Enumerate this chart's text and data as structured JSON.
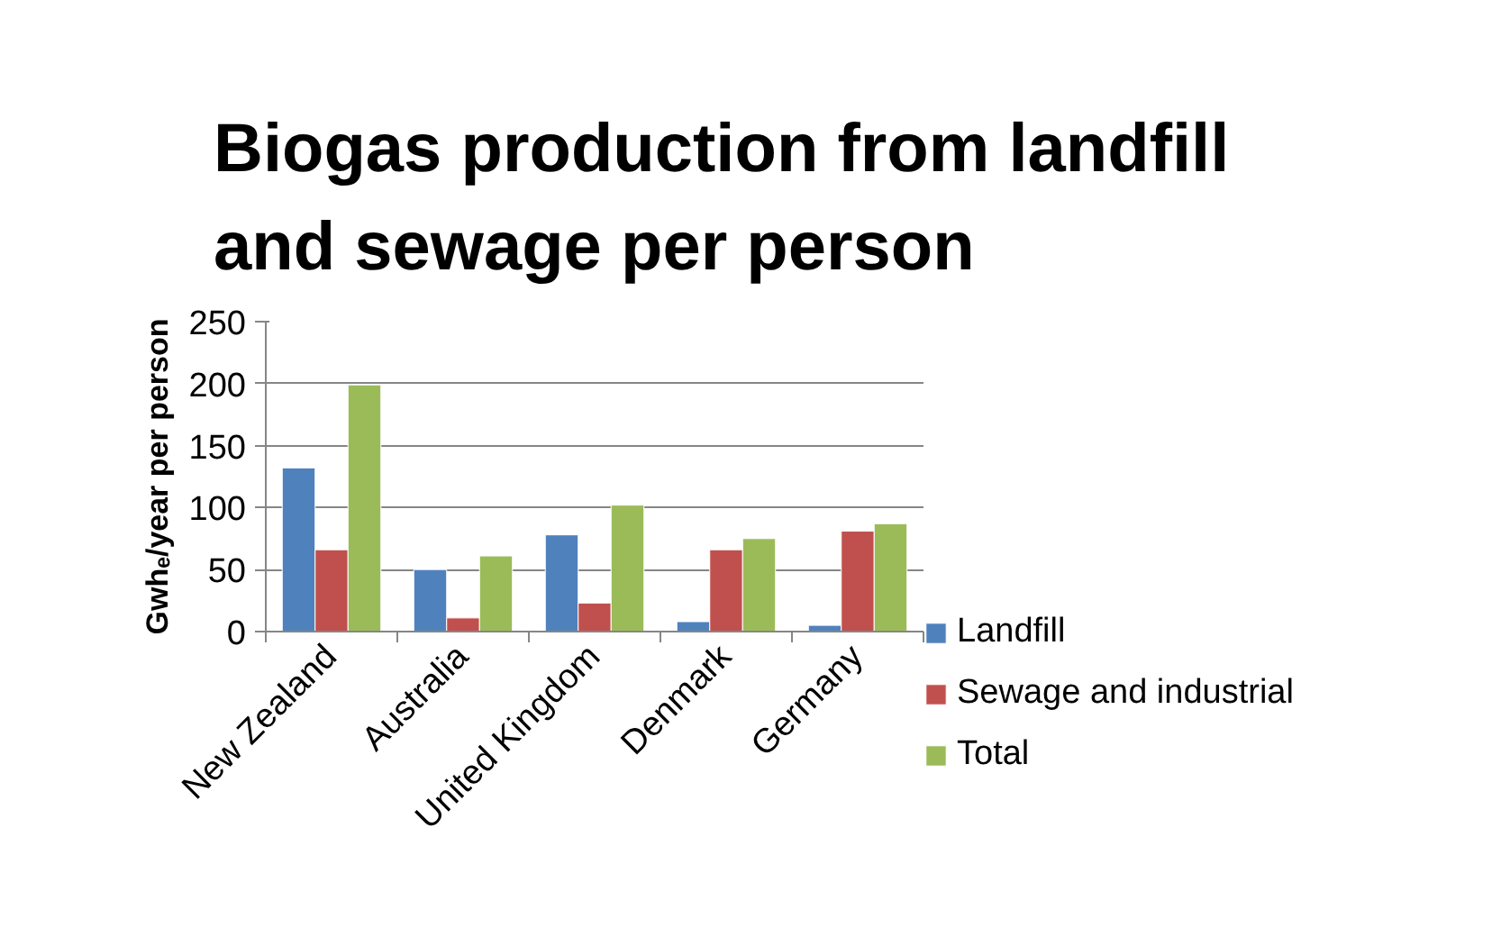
{
  "chart_data": {
    "type": "bar",
    "title": "Biogas production from landfill and sewage per person",
    "ylabel": "Gwhₑ/year per person",
    "categories": [
      "New Zealand",
      "Australia",
      "United Kingdom",
      "Denmark",
      "Germany"
    ],
    "series": [
      {
        "name": "Landfill",
        "color": "#4f81bd",
        "values": [
          132,
          50,
          78,
          8,
          5
        ]
      },
      {
        "name": "Sewage and industrial",
        "color": "#c0504d",
        "values": [
          66,
          11,
          23,
          66,
          81
        ]
      },
      {
        "name": "Total",
        "color": "#9bbb59",
        "values": [
          199,
          61,
          102,
          75,
          87
        ]
      }
    ],
    "ylim": [
      0,
      250
    ],
    "yticks": [
      0,
      50,
      100,
      150,
      200,
      250
    ],
    "grid": "y",
    "legend": "right"
  }
}
